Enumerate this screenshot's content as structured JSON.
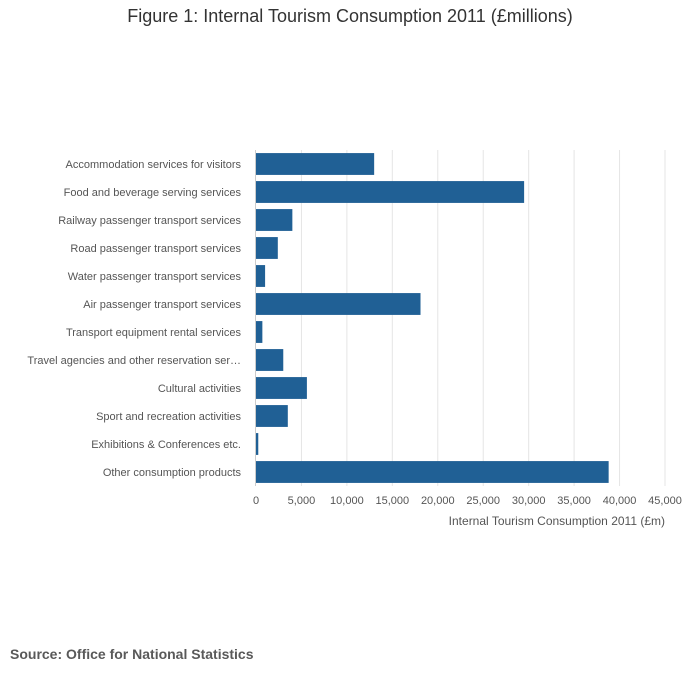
{
  "title": "Figure 1: Internal Tourism Consumption 2011 (£millions)",
  "source": "Source: Office for National Statistics",
  "colors": {
    "bar": "#206095",
    "grid": "#e5e5e5",
    "axis": "#cccccc"
  },
  "chart_data": {
    "type": "bar",
    "orientation": "horizontal",
    "title": "Figure 1: Internal Tourism Consumption 2011 (£millions)",
    "xlabel": "Internal Tourism Consumption 2011 (£m)",
    "ylabel": "",
    "xlim": [
      0,
      45000
    ],
    "xticks": [
      0,
      5000,
      10000,
      15000,
      20000,
      25000,
      30000,
      35000,
      40000,
      45000
    ],
    "xtick_labels": [
      "0",
      "5,000",
      "10,000",
      "15,000",
      "20,000",
      "25,000",
      "30,000",
      "35,000",
      "40,000",
      "45,000"
    ],
    "grid": true,
    "categories": [
      "Accommodation services for visitors",
      "Food and beverage serving services",
      "Railway passenger transport services",
      "Road passenger transport services",
      "Water passenger transport services",
      "Air passenger transport services",
      "Transport equipment rental services",
      "Travel agencies and other reservation ser…",
      "Cultural activities",
      "Sport and recreation activities",
      "Exhibitions & Conferences etc.",
      "Other consumption products"
    ],
    "values": [
      13000,
      29500,
      4000,
      2400,
      1000,
      18100,
      700,
      3000,
      5600,
      3500,
      250,
      38800
    ]
  }
}
